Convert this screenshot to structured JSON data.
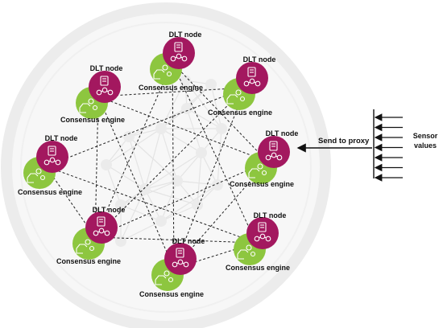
{
  "colors": {
    "dlt_node": "#a3185f",
    "consensus_engine": "#8dc63f",
    "background_ring": "#ececec",
    "link": "#222222"
  },
  "icons": {
    "dlt_node": "certificate-chain-icon",
    "consensus_engine": "hand-gears-icon"
  },
  "labels": {
    "dlt_node": "DLT node",
    "consensus_engine": "Consensus engine",
    "send_to_proxy": "Send to proxy",
    "sensor_values_line1": "Sensor",
    "sensor_values_line2": "values"
  },
  "nodes": [
    {
      "id": "node-1",
      "dlt_label": "DLT node",
      "engine_label": "Consensus engine"
    },
    {
      "id": "node-2",
      "dlt_label": "DLT node",
      "engine_label": "Consensus engine"
    },
    {
      "id": "node-3",
      "dlt_label": "DLT node",
      "engine_label": "Consensus engine"
    },
    {
      "id": "node-4",
      "dlt_label": "DLT node",
      "engine_label": "Consensus engine"
    },
    {
      "id": "node-5",
      "dlt_label": "DLT node",
      "engine_label": "Consensus engine"
    },
    {
      "id": "node-6",
      "dlt_label": "DLT node",
      "engine_label": "Consensus engine"
    },
    {
      "id": "node-7",
      "dlt_label": "DLT node",
      "engine_label": "Consensus engine"
    },
    {
      "id": "node-8",
      "dlt_label": "DLT node",
      "engine_label": "Consensus engine"
    }
  ],
  "links": [
    [
      "node-2",
      "node-6"
    ],
    [
      "node-2",
      "node-8"
    ],
    [
      "node-2",
      "node-5"
    ],
    [
      "node-2",
      "node-3"
    ],
    [
      "node-1",
      "node-8"
    ],
    [
      "node-1",
      "node-5"
    ],
    [
      "node-1",
      "node-7"
    ],
    [
      "node-1",
      "node-6"
    ],
    [
      "node-3",
      "node-4"
    ],
    [
      "node-3",
      "node-6"
    ],
    [
      "node-3",
      "node-8"
    ],
    [
      "node-4",
      "node-7"
    ],
    [
      "node-4",
      "node-6"
    ],
    [
      "node-5",
      "node-6"
    ],
    [
      "node-5",
      "node-8"
    ],
    [
      "node-6",
      "node-7"
    ],
    [
      "node-7",
      "node-8"
    ]
  ],
  "sensor_arrow_count": 7
}
